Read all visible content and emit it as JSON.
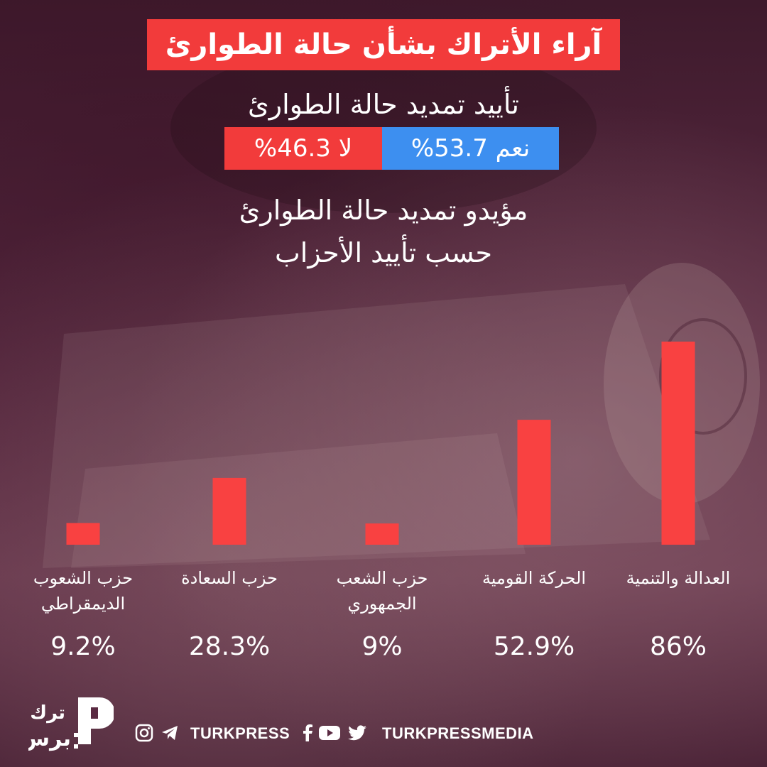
{
  "title": "آراء الأتراك بشأن حالة الطوارئ",
  "subtitle": "تأييد تمديد حالة الطوارئ",
  "poll": {
    "yes_label": "نعم 53.7%",
    "no_label": "لا 46.3%",
    "yes_value": 53.7,
    "no_value": 46.3,
    "yes_color": "#3d8ff0",
    "no_color": "#f23b3b"
  },
  "chart_heading": {
    "line1": "مؤيدو تمديد حالة الطوارئ",
    "line2": "حسب تأييد الأحزاب"
  },
  "chart_data": {
    "type": "bar",
    "categories": [
      [
        "العدالة والتنمية"
      ],
      [
        "الحركة القومية"
      ],
      [
        "حزب الشعب",
        "الجمهوري"
      ],
      [
        "حزب السعادة"
      ],
      [
        "حزب الشعوب",
        "الديمقراطي"
      ]
    ],
    "values": [
      86,
      52.9,
      9,
      28.3,
      9.2
    ],
    "value_labels": [
      "86%",
      "52.9%",
      "9%",
      "28.3%",
      "9.2%"
    ],
    "ylim": [
      0,
      86
    ],
    "color": "#f94141",
    "grid": false
  },
  "footer": {
    "handle_left": "TURKPRESS",
    "handle_right": "TURKPRESSMEDIA",
    "logo_text_top": "ترك",
    "logo_text_bottom": "برس"
  },
  "icons": [
    "instagram-icon",
    "telegram-icon",
    "facebook-icon",
    "youtube-icon",
    "twitter-icon"
  ]
}
